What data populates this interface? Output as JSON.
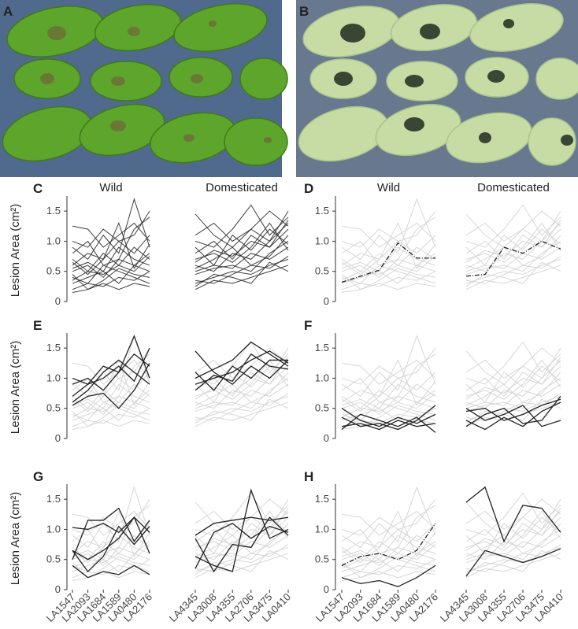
{
  "photos": [
    {
      "label": "A"
    },
    {
      "label": "B"
    }
  ],
  "background": {
    "wild": [
      [
        0.5,
        0.6,
        0.4,
        0.7,
        0.6,
        0.8
      ],
      [
        0.3,
        0.4,
        0.5,
        0.3,
        0.6,
        0.5
      ],
      [
        0.7,
        0.5,
        0.8,
        0.6,
        0.9,
        0.7
      ],
      [
        1.25,
        1.2,
        0.9,
        1.1,
        1.3,
        1.0
      ],
      [
        0.2,
        0.3,
        0.25,
        0.4,
        0.35,
        0.5
      ],
      [
        0.6,
        0.8,
        0.7,
        1.0,
        0.8,
        1.1
      ],
      [
        0.4,
        0.3,
        0.6,
        0.5,
        0.4,
        0.3
      ],
      [
        0.9,
        0.7,
        1.1,
        0.8,
        1.7,
        0.9
      ],
      [
        0.15,
        0.2,
        0.3,
        0.2,
        0.3,
        0.25
      ],
      [
        0.55,
        0.65,
        0.5,
        0.9,
        0.7,
        0.6
      ],
      [
        0.8,
        1.0,
        0.6,
        0.7,
        1.2,
        1.4
      ],
      [
        0.35,
        0.5,
        0.45,
        0.6,
        0.5,
        0.75
      ],
      [
        1.0,
        0.9,
        1.2,
        1.0,
        1.1,
        1.5
      ],
      [
        0.45,
        0.2,
        0.35,
        0.55,
        0.45,
        0.4
      ],
      [
        0.65,
        0.45,
        0.7,
        1.3,
        0.55,
        0.95
      ]
    ],
    "domesticated": [
      [
        1.45,
        1.1,
        0.9,
        1.2,
        1.0,
        1.3
      ],
      [
        0.5,
        0.6,
        0.55,
        0.8,
        0.7,
        0.9
      ],
      [
        0.3,
        0.4,
        0.5,
        0.45,
        0.6,
        0.7
      ],
      [
        0.8,
        1.0,
        0.7,
        1.1,
        0.9,
        1.2
      ],
      [
        0.6,
        0.5,
        0.8,
        0.7,
        1.0,
        1.5
      ],
      [
        0.2,
        0.35,
        0.3,
        0.4,
        0.5,
        0.6
      ],
      [
        1.0,
        0.9,
        1.2,
        1.6,
        1.1,
        1.4
      ],
      [
        0.45,
        0.55,
        0.6,
        0.5,
        0.8,
        1.0
      ],
      [
        0.7,
        0.8,
        0.65,
        0.9,
        1.3,
        0.85
      ],
      [
        0.35,
        0.3,
        0.45,
        0.6,
        0.55,
        0.75
      ],
      [
        1.1,
        1.3,
        1.0,
        1.2,
        1.5,
        1.25
      ],
      [
        0.55,
        0.7,
        0.9,
        0.6,
        0.75,
        1.1
      ],
      [
        0.25,
        0.45,
        0.4,
        0.3,
        0.65,
        0.5
      ],
      [
        0.9,
        0.6,
        1.1,
        0.85,
        1.2,
        0.95
      ],
      [
        0.65,
        0.85,
        0.75,
        1.0,
        0.9,
        1.35
      ]
    ]
  },
  "wild_categories": [
    "LA1547",
    "LA2093",
    "LA1684",
    "LA1589",
    "LA0480",
    "LA2176"
  ],
  "domesticated_categories": [
    "LA4345",
    "LA3008",
    "LA4355",
    "LA2706",
    "LA3475",
    "LA0410"
  ],
  "chart_data": [
    {
      "type": "line",
      "panel": "C",
      "subtitles": [
        "Wild",
        "Domesticated"
      ],
      "ylabel": "Lesion Area (cm²)",
      "background_color": "#2a2a2a",
      "color": "#222",
      "ylim": [
        0,
        1.75
      ],
      "yticks": [
        0,
        0.5,
        {
          "value": 1,
          "label": "1.0"
        },
        1.5
      ],
      "series": []
    },
    {
      "type": "line",
      "panel": "D",
      "subtitles": [
        "Wild",
        "Domesticated"
      ],
      "background_color": "#d3d3d3",
      "color": "#222",
      "ylim": [
        0,
        1.75
      ],
      "yticks": [
        0,
        0.5,
        {
          "value": 1,
          "label": "1.0"
        },
        1.5
      ],
      "series": [
        {
          "group": "wild",
          "dashed": true,
          "values": [
            0.32,
            0.42,
            0.52,
            0.97,
            0.72,
            0.72
          ]
        },
        {
          "group": "domesticated",
          "dashed": true,
          "values": [
            0.42,
            0.45,
            0.9,
            0.8,
            1.0,
            0.87
          ]
        }
      ]
    },
    {
      "type": "line",
      "panel": "E",
      "ylabel": "Lesion Area (cm²)",
      "background_color": "#d3d3d3",
      "color": "#222",
      "ylim": [
        0,
        1.75
      ],
      "yticks": [
        0,
        0.5,
        {
          "value": 1,
          "label": "1.0"
        },
        1.5
      ],
      "series": [
        {
          "group": "wild",
          "values": [
            1.0,
            0.9,
            1.2,
            1.1,
            1.7,
            1.0
          ]
        },
        {
          "group": "wild",
          "values": [
            0.7,
            0.9,
            1.0,
            1.2,
            0.95,
            1.5
          ]
        },
        {
          "group": "wild",
          "values": [
            0.6,
            0.8,
            1.1,
            1.3,
            1.1,
            0.9
          ]
        },
        {
          "group": "wild",
          "values": [
            0.9,
            1.0,
            0.8,
            1.1,
            1.4,
            1.2
          ]
        },
        {
          "group": "wild",
          "values": [
            0.55,
            0.7,
            0.75,
            0.5,
            0.8,
            1.25
          ]
        },
        {
          "group": "domesticated",
          "values": [
            1.45,
            1.1,
            0.9,
            1.2,
            1.0,
            1.3
          ]
        },
        {
          "group": "domesticated",
          "values": [
            1.0,
            1.15,
            1.3,
            1.6,
            1.4,
            1.2
          ]
        },
        {
          "group": "domesticated",
          "values": [
            0.9,
            1.0,
            1.1,
            1.3,
            1.45,
            1.25
          ]
        },
        {
          "group": "domesticated",
          "values": [
            1.1,
            0.8,
            1.2,
            1.0,
            1.3,
            1.3
          ]
        },
        {
          "group": "domesticated",
          "values": [
            0.8,
            1.05,
            0.95,
            1.4,
            1.2,
            1.15
          ]
        }
      ]
    },
    {
      "type": "line",
      "panel": "F",
      "background_color": "#d3d3d3",
      "color": "#222",
      "ylim": [
        0,
        1.75
      ],
      "yticks": [
        0,
        0.5,
        {
          "value": 1,
          "label": "1.0"
        },
        1.5
      ],
      "series": [
        {
          "group": "wild",
          "values": [
            0.5,
            0.3,
            0.2,
            0.35,
            0.25,
            0.4
          ]
        },
        {
          "group": "wild",
          "values": [
            0.2,
            0.25,
            0.15,
            0.3,
            0.2,
            0.25
          ]
        },
        {
          "group": "wild",
          "values": [
            0.15,
            0.4,
            0.3,
            0.2,
            0.35,
            0.1
          ]
        },
        {
          "group": "wild",
          "values": [
            0.35,
            0.2,
            0.25,
            0.15,
            0.3,
            0.55
          ]
        },
        {
          "group": "domesticated",
          "values": [
            0.45,
            0.5,
            0.3,
            0.4,
            0.55,
            0.65
          ]
        },
        {
          "group": "domesticated",
          "values": [
            0.2,
            0.4,
            0.5,
            0.25,
            0.3,
            0.7
          ]
        },
        {
          "group": "domesticated",
          "values": [
            0.3,
            0.15,
            0.35,
            0.2,
            0.45,
            0.6
          ]
        },
        {
          "group": "domesticated",
          "values": [
            0.5,
            0.3,
            0.4,
            0.55,
            0.2,
            0.3
          ]
        }
      ]
    },
    {
      "type": "line",
      "panel": "G",
      "ylabel": "Lesion Area (cm²)",
      "show_x_labels": true,
      "background_color": "#d3d3d3",
      "color": "#222",
      "ylim": [
        0,
        1.75
      ],
      "yticks": [
        0,
        0.5,
        {
          "value": 1,
          "label": "1.0"
        },
        1.5
      ],
      "series": [
        {
          "group": "wild",
          "values": [
            1.03,
            1.0,
            1.1,
            0.95,
            1.2,
            0.95
          ]
        },
        {
          "group": "wild",
          "values": [
            0.65,
            0.3,
            0.55,
            1.05,
            0.75,
            1.05
          ]
        },
        {
          "group": "wild",
          "values": [
            0.4,
            0.2,
            0.3,
            0.25,
            0.4,
            0.25
          ]
        },
        {
          "group": "wild",
          "values": [
            0.5,
            1.15,
            1.15,
            1.35,
            0.8,
            1.15
          ]
        },
        {
          "group": "wild",
          "values": [
            0.65,
            0.5,
            0.65,
            0.85,
            1.2,
            0.6
          ]
        },
        {
          "group": "domesticated",
          "values": [
            0.9,
            1.1,
            1.15,
            1.2,
            1.15,
            1.2
          ]
        },
        {
          "group": "domesticated",
          "values": [
            0.55,
            0.4,
            0.3,
            1.65,
            0.85,
            1.0
          ]
        },
        {
          "group": "domesticated",
          "values": [
            0.85,
            0.3,
            0.75,
            0.7,
            1.2,
            0.9
          ]
        },
        {
          "group": "domesticated",
          "values": [
            0.35,
            0.95,
            1.1,
            0.85,
            1.05,
            0.95
          ]
        }
      ]
    },
    {
      "type": "line",
      "panel": "H",
      "show_x_labels": true,
      "background_color": "#d3d3d3",
      "color": "#222",
      "ylim": [
        0,
        1.75
      ],
      "yticks": [
        0,
        0.5,
        {
          "value": 1,
          "label": "1.0"
        },
        1.5
      ],
      "series": [
        {
          "group": "wild",
          "dashed": true,
          "values": [
            0.4,
            0.55,
            0.6,
            0.5,
            0.65,
            1.1
          ]
        },
        {
          "group": "wild",
          "values": [
            0.2,
            0.1,
            0.15,
            0.05,
            0.2,
            0.4
          ]
        },
        {
          "group": "domesticated",
          "values": [
            1.45,
            1.7,
            0.8,
            1.4,
            1.35,
            0.95
          ]
        },
        {
          "group": "domesticated",
          "values": [
            0.22,
            0.65,
            0.55,
            0.45,
            0.55,
            0.68
          ]
        }
      ]
    }
  ]
}
